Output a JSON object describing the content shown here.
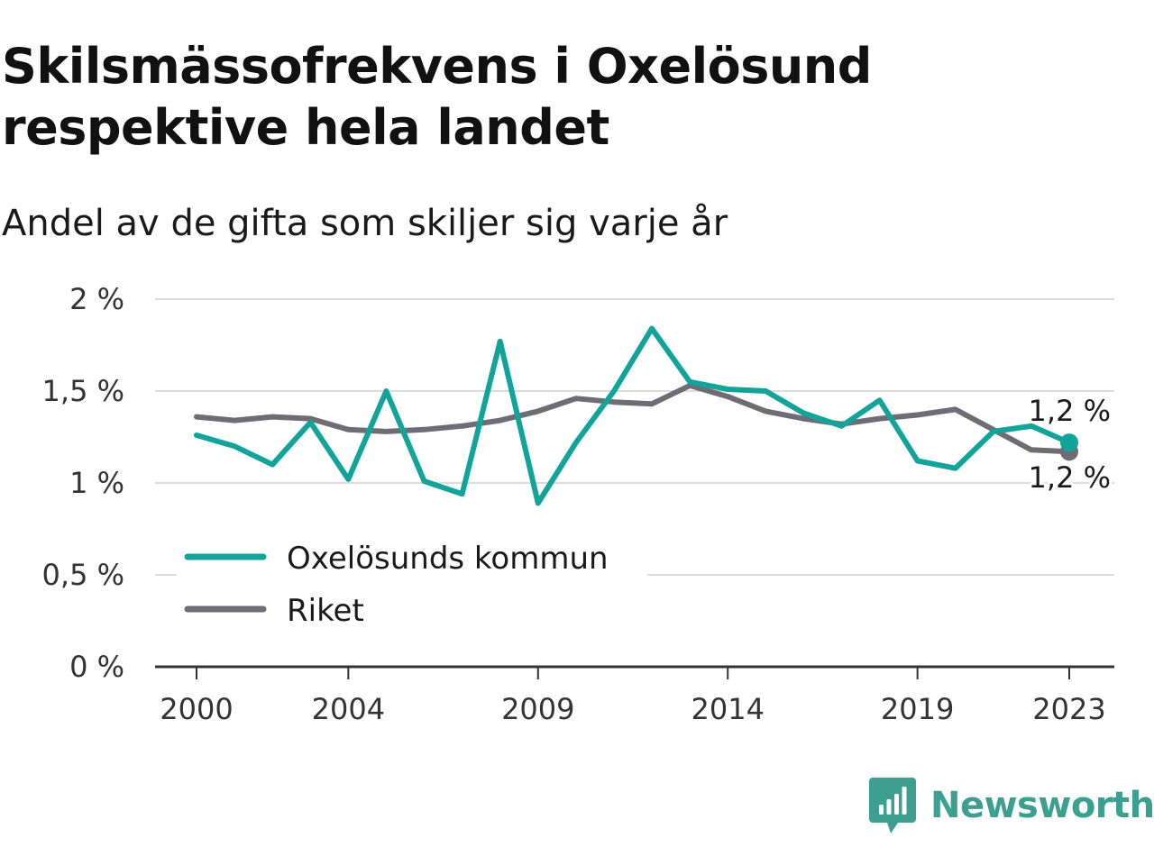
{
  "title": "Skilsmässofrekvens i Oxelösund respektive hela landet",
  "subtitle": "Andel av de gifta som skiljer sig varje år",
  "colors": {
    "oxelosund": "#12a49b",
    "riket": "#6e6d75",
    "grid": "#dcdcdc",
    "axis": "#333333",
    "brand": "#3d9f90"
  },
  "brand": {
    "name": "Newsworthy",
    "icon": "newsworthy-logo-icon"
  },
  "chart_data": {
    "type": "line",
    "title": "Skilsmässofrekvens i Oxelösund respektive hela landet",
    "subtitle": "Andel av de gifta som skiljer sig varje år",
    "x": [
      2000,
      2001,
      2002,
      2003,
      2004,
      2005,
      2006,
      2007,
      2008,
      2009,
      2010,
      2011,
      2012,
      2013,
      2014,
      2015,
      2016,
      2017,
      2018,
      2019,
      2020,
      2021,
      2022,
      2023
    ],
    "xticks": [
      2000,
      2004,
      2009,
      2014,
      2019,
      2023
    ],
    "xtick_labels": [
      "2000",
      "2004",
      "2009",
      "2014",
      "2019",
      "2023"
    ],
    "yticks": [
      0,
      0.5,
      1,
      1.5,
      2
    ],
    "ytick_labels": [
      "0 %",
      "0,5 %",
      "1 %",
      "1,5 %",
      "2 %"
    ],
    "ylim": [
      0,
      2
    ],
    "xlim": [
      2000,
      2023
    ],
    "grid": "horizontal",
    "legend_position": "lower-left",
    "series": [
      {
        "name": "Oxelösunds kommun",
        "color": "#12a49b",
        "values": [
          1.26,
          1.2,
          1.1,
          1.33,
          1.02,
          1.5,
          1.01,
          0.94,
          1.77,
          0.89,
          1.22,
          1.5,
          1.84,
          1.55,
          1.51,
          1.5,
          1.38,
          1.31,
          1.45,
          1.12,
          1.08,
          1.28,
          1.31,
          1.22
        ],
        "end_label": "1,2 %"
      },
      {
        "name": "Riket",
        "color": "#6e6d75",
        "values": [
          1.36,
          1.34,
          1.36,
          1.35,
          1.29,
          1.28,
          1.29,
          1.31,
          1.34,
          1.39,
          1.46,
          1.44,
          1.43,
          1.53,
          1.47,
          1.39,
          1.35,
          1.32,
          1.35,
          1.37,
          1.4,
          1.29,
          1.18,
          1.17
        ],
        "end_label": "1,2 %"
      }
    ]
  }
}
